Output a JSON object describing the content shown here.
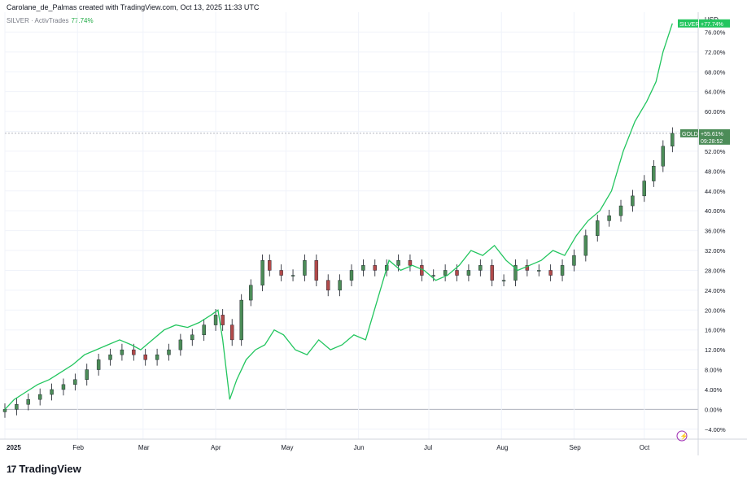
{
  "header": {
    "attribution": "Carolane_de_Palmas created with TradingView.com, Oct 13, 2025 11:33 UTC"
  },
  "legend": {
    "symbol": "SILVER · ActivTrades",
    "change": "77.74%"
  },
  "currency": "USD",
  "logo": {
    "mark": "17",
    "text": "TradingView"
  },
  "colors": {
    "silver": "#22c55e",
    "up": "#26a69a",
    "up_body": "#4c8c58",
    "down": "#b04a4a",
    "grid": "#f0f3fa",
    "zero": "#b2b5be"
  },
  "chart_data": {
    "type": "line",
    "ylim": [
      -4,
      80
    ],
    "y_ticks": [
      "76.00%",
      "72.00%",
      "68.00%",
      "64.00%",
      "60.00%",
      "56.00%",
      "52.00%",
      "48.00%",
      "44.00%",
      "40.00%",
      "36.00%",
      "32.00%",
      "28.00%",
      "24.00%",
      "20.00%",
      "16.00%",
      "12.00%",
      "8.00%",
      "4.00%",
      "0.00%",
      "−4.00%"
    ],
    "y_tick_values": [
      76,
      72,
      68,
      64,
      60,
      56,
      52,
      48,
      44,
      40,
      36,
      32,
      28,
      24,
      20,
      16,
      12,
      8,
      4,
      0,
      -4
    ],
    "x_ticks": [
      {
        "label": "2025",
        "date": "2025-01-01"
      },
      {
        "label": "Feb",
        "date": "2025-02-01"
      },
      {
        "label": "Mar",
        "date": "2025-03-01"
      },
      {
        "label": "Apr",
        "date": "2025-04-01"
      },
      {
        "label": "May",
        "date": "2025-05-01"
      },
      {
        "label": "Jun",
        "date": "2025-06-01"
      },
      {
        "label": "Jul",
        "date": "2025-07-01"
      },
      {
        "label": "Aug",
        "date": "2025-08-01"
      },
      {
        "label": "Sep",
        "date": "2025-09-01"
      },
      {
        "label": "Oct",
        "date": "2025-10-01"
      }
    ],
    "series": [
      {
        "name": "SILVER",
        "kind": "line",
        "badge": "+77.74%",
        "points": [
          [
            "2025-01-01",
            0
          ],
          [
            "2025-01-05",
            2
          ],
          [
            "2025-01-10",
            3.5
          ],
          [
            "2025-01-15",
            5
          ],
          [
            "2025-01-20",
            6
          ],
          [
            "2025-01-25",
            7.5
          ],
          [
            "2025-01-30",
            9
          ],
          [
            "2025-02-04",
            11
          ],
          [
            "2025-02-09",
            12
          ],
          [
            "2025-02-14",
            13
          ],
          [
            "2025-02-19",
            14
          ],
          [
            "2025-02-24",
            13
          ],
          [
            "2025-02-28",
            12
          ],
          [
            "2025-03-05",
            14
          ],
          [
            "2025-03-10",
            16
          ],
          [
            "2025-03-15",
            17
          ],
          [
            "2025-03-20",
            16.5
          ],
          [
            "2025-03-25",
            17.5
          ],
          [
            "2025-03-30",
            19
          ],
          [
            "2025-04-02",
            20
          ],
          [
            "2025-04-04",
            14
          ],
          [
            "2025-04-07",
            2
          ],
          [
            "2025-04-10",
            6
          ],
          [
            "2025-04-14",
            10
          ],
          [
            "2025-04-18",
            12
          ],
          [
            "2025-04-22",
            13
          ],
          [
            "2025-04-26",
            16
          ],
          [
            "2025-04-30",
            15
          ],
          [
            "2025-05-05",
            12
          ],
          [
            "2025-05-10",
            11
          ],
          [
            "2025-05-15",
            14
          ],
          [
            "2025-05-20",
            12
          ],
          [
            "2025-05-25",
            13
          ],
          [
            "2025-05-30",
            15
          ],
          [
            "2025-06-04",
            14
          ],
          [
            "2025-06-09",
            22
          ],
          [
            "2025-06-14",
            30
          ],
          [
            "2025-06-19",
            28
          ],
          [
            "2025-06-24",
            29
          ],
          [
            "2025-06-29",
            28
          ],
          [
            "2025-07-04",
            26
          ],
          [
            "2025-07-09",
            27
          ],
          [
            "2025-07-14",
            29
          ],
          [
            "2025-07-19",
            32
          ],
          [
            "2025-07-24",
            31
          ],
          [
            "2025-07-29",
            33
          ],
          [
            "2025-08-03",
            30
          ],
          [
            "2025-08-08",
            28
          ],
          [
            "2025-08-13",
            29
          ],
          [
            "2025-08-18",
            30
          ],
          [
            "2025-08-23",
            32
          ],
          [
            "2025-08-28",
            31
          ],
          [
            "2025-09-02",
            35
          ],
          [
            "2025-09-07",
            38
          ],
          [
            "2025-09-12",
            40
          ],
          [
            "2025-09-17",
            44
          ],
          [
            "2025-09-22",
            52
          ],
          [
            "2025-09-27",
            58
          ],
          [
            "2025-10-02",
            62
          ],
          [
            "2025-10-06",
            66
          ],
          [
            "2025-10-09",
            72
          ],
          [
            "2025-10-13",
            77.74
          ]
        ]
      },
      {
        "name": "GOLD",
        "kind": "candlestick",
        "badge": "+55.61%",
        "badge_time": "09:28:52",
        "points": [
          [
            "2025-01-01",
            0
          ],
          [
            "2025-01-06",
            1
          ],
          [
            "2025-01-11",
            2
          ],
          [
            "2025-01-16",
            3
          ],
          [
            "2025-01-21",
            4
          ],
          [
            "2025-01-26",
            5
          ],
          [
            "2025-01-31",
            6
          ],
          [
            "2025-02-05",
            8
          ],
          [
            "2025-02-10",
            10
          ],
          [
            "2025-02-15",
            11
          ],
          [
            "2025-02-20",
            12
          ],
          [
            "2025-02-25",
            11
          ],
          [
            "2025-03-02",
            10
          ],
          [
            "2025-03-07",
            11
          ],
          [
            "2025-03-12",
            12
          ],
          [
            "2025-03-17",
            14
          ],
          [
            "2025-03-22",
            15
          ],
          [
            "2025-03-27",
            17
          ],
          [
            "2025-04-01",
            19
          ],
          [
            "2025-04-04",
            17
          ],
          [
            "2025-04-08",
            14
          ],
          [
            "2025-04-12",
            22
          ],
          [
            "2025-04-16",
            25
          ],
          [
            "2025-04-21",
            30
          ],
          [
            "2025-04-24",
            28
          ],
          [
            "2025-04-29",
            27
          ],
          [
            "2025-05-04",
            27
          ],
          [
            "2025-05-09",
            30
          ],
          [
            "2025-05-14",
            26
          ],
          [
            "2025-05-19",
            24
          ],
          [
            "2025-05-24",
            26
          ],
          [
            "2025-05-29",
            28
          ],
          [
            "2025-06-03",
            29
          ],
          [
            "2025-06-08",
            28
          ],
          [
            "2025-06-13",
            29
          ],
          [
            "2025-06-18",
            30
          ],
          [
            "2025-06-23",
            29
          ],
          [
            "2025-06-28",
            27
          ],
          [
            "2025-07-03",
            27
          ],
          [
            "2025-07-08",
            28
          ],
          [
            "2025-07-13",
            27
          ],
          [
            "2025-07-18",
            28
          ],
          [
            "2025-07-23",
            29
          ],
          [
            "2025-07-28",
            26
          ],
          [
            "2025-08-02",
            26
          ],
          [
            "2025-08-07",
            29
          ],
          [
            "2025-08-12",
            28
          ],
          [
            "2025-08-17",
            28
          ],
          [
            "2025-08-22",
            27
          ],
          [
            "2025-08-27",
            29
          ],
          [
            "2025-09-01",
            31
          ],
          [
            "2025-09-06",
            35
          ],
          [
            "2025-09-11",
            38
          ],
          [
            "2025-09-16",
            39
          ],
          [
            "2025-09-21",
            41
          ],
          [
            "2025-09-26",
            43
          ],
          [
            "2025-10-01",
            46
          ],
          [
            "2025-10-05",
            49
          ],
          [
            "2025-10-09",
            53
          ],
          [
            "2025-10-13",
            55.61
          ]
        ]
      }
    ]
  }
}
